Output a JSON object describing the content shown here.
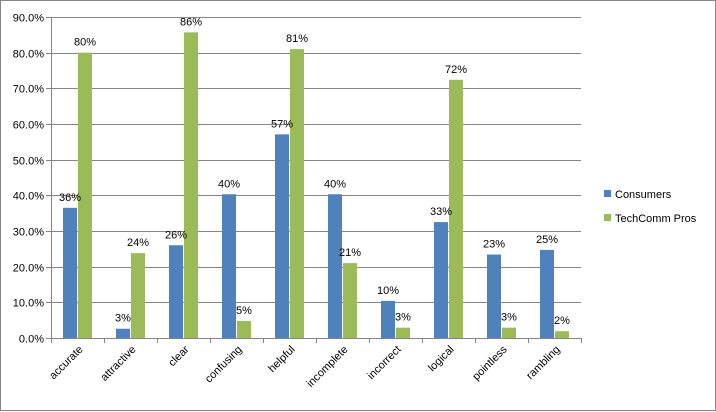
{
  "chart_data": {
    "type": "bar",
    "categories": [
      "accurate",
      "attractive",
      "clear",
      "confusing",
      "helpful",
      "incomplete",
      "incorrect",
      "logical",
      "pointless",
      "rambling"
    ],
    "series": [
      {
        "name": "Consumers",
        "color": "#4F81BD",
        "values": [
          36.5,
          2.6,
          26.0,
          40.3,
          57.1,
          40.3,
          10.4,
          32.5,
          23.4,
          24.7
        ],
        "labels": [
          "36%",
          "3%",
          "26%",
          "40%",
          "57%",
          "40%",
          "10%",
          "33%",
          "23%",
          "25%"
        ]
      },
      {
        "name": "TechComm Pros",
        "color": "#9BBB59",
        "values": [
          80.0,
          23.8,
          85.7,
          4.8,
          81.0,
          21.0,
          2.9,
          72.4,
          2.9,
          1.9
        ],
        "labels": [
          "80%",
          "24%",
          "86%",
          "5%",
          "81%",
          "21%",
          "3%",
          "72%",
          "3%",
          "2%"
        ]
      }
    ],
    "y_ticks": [
      "0.0%",
      "10.0%",
      "20.0%",
      "30.0%",
      "40.0%",
      "50.0%",
      "60.0%",
      "70.0%",
      "80.0%",
      "90.0%"
    ],
    "ylim": [
      0,
      90
    ],
    "title": "",
    "xlabel": "",
    "ylabel": "",
    "grid": "horizontal",
    "legend_position": "right"
  }
}
